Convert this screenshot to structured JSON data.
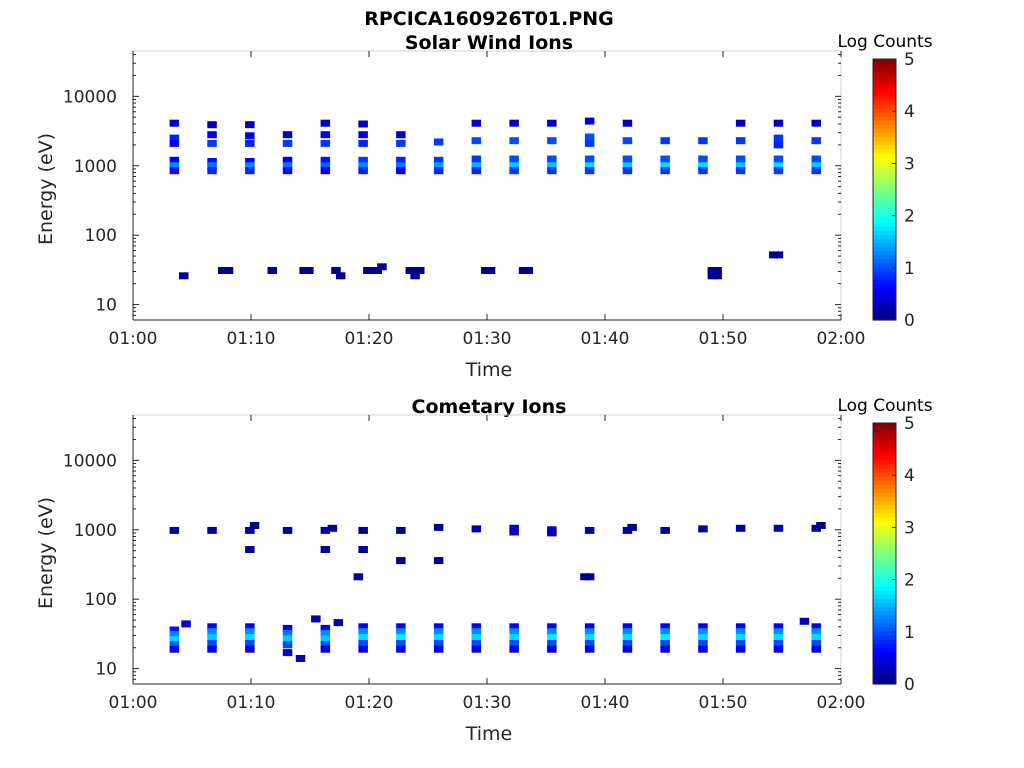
{
  "figure": {
    "title": "RPCICA160926T01.PNG"
  },
  "chart_data": [
    {
      "type": "heatmap",
      "title": "Solar Wind Ions",
      "xlabel": "Time",
      "ylabel": "Energy (eV)",
      "x_range_minutes": [
        0,
        60
      ],
      "y_scale": "log",
      "y_range": [
        6,
        45000
      ],
      "x_ticks": [
        {
          "v": 0,
          "label": "01:00"
        },
        {
          "v": 10,
          "label": "01:10"
        },
        {
          "v": 20,
          "label": "01:20"
        },
        {
          "v": 30,
          "label": "01:30"
        },
        {
          "v": 40,
          "label": "01:40"
        },
        {
          "v": 50,
          "label": "01:50"
        },
        {
          "v": 60,
          "label": "02:00"
        }
      ],
      "y_ticks": [
        {
          "v": 10,
          "label": "10"
        },
        {
          "v": 100,
          "label": "100"
        },
        {
          "v": 1000,
          "label": "1000"
        },
        {
          "v": 10000,
          "label": "10000"
        }
      ],
      "colorbar": {
        "label": "Log Counts",
        "min": 0,
        "max": 5,
        "ticks": [
          "0",
          "1",
          "2",
          "3",
          "4",
          "5"
        ]
      },
      "scan_times_minutes": [
        3.5,
        6.7,
        9.9,
        13.1,
        16.3,
        19.5,
        22.7,
        25.9,
        29.1,
        32.3,
        35.5,
        38.7,
        41.9,
        45.1,
        48.3,
        51.5,
        54.7,
        57.9
      ],
      "cells": [
        [
          3.5,
          4100,
          0.4
        ],
        [
          3.5,
          2500,
          0.8
        ],
        [
          3.5,
          2100,
          0.6
        ],
        [
          3.5,
          1200,
          0.6
        ],
        [
          3.5,
          1000,
          1.3
        ],
        [
          3.5,
          850,
          0.7
        ],
        [
          6.7,
          3900,
          0.3
        ],
        [
          6.7,
          2800,
          0.6
        ],
        [
          6.7,
          2100,
          0.9
        ],
        [
          6.7,
          1150,
          0.7
        ],
        [
          6.7,
          1000,
          1.2
        ],
        [
          6.7,
          850,
          0.8
        ],
        [
          9.9,
          3900,
          0.3
        ],
        [
          9.9,
          2700,
          0.5
        ],
        [
          9.9,
          2100,
          0.8
        ],
        [
          9.9,
          1150,
          0.6
        ],
        [
          9.9,
          1000,
          1.3
        ],
        [
          9.9,
          850,
          0.8
        ],
        [
          13.1,
          2800,
          0.4
        ],
        [
          13.1,
          2100,
          0.9
        ],
        [
          13.1,
          1200,
          0.6
        ],
        [
          13.1,
          1000,
          1.2
        ],
        [
          13.1,
          850,
          0.7
        ],
        [
          16.3,
          4100,
          0.3
        ],
        [
          16.3,
          2800,
          0.5
        ],
        [
          16.3,
          2100,
          0.9
        ],
        [
          16.3,
          1200,
          0.7
        ],
        [
          16.3,
          1000,
          1.1
        ],
        [
          16.3,
          850,
          0.6
        ],
        [
          19.5,
          4000,
          0.3
        ],
        [
          19.5,
          2800,
          0.5
        ],
        [
          19.5,
          2100,
          0.8
        ],
        [
          19.5,
          1200,
          0.9
        ],
        [
          19.5,
          1000,
          1.3
        ],
        [
          19.5,
          850,
          0.8
        ],
        [
          22.7,
          2800,
          0.5
        ],
        [
          22.7,
          2100,
          0.9
        ],
        [
          22.7,
          1200,
          0.8
        ],
        [
          22.7,
          1000,
          1.2
        ],
        [
          22.7,
          850,
          0.6
        ],
        [
          25.9,
          2200,
          0.9
        ],
        [
          25.9,
          1200,
          0.9
        ],
        [
          25.9,
          1000,
          1.4
        ],
        [
          25.9,
          850,
          0.8
        ],
        [
          29.1,
          4100,
          0.4
        ],
        [
          29.1,
          2300,
          1.0
        ],
        [
          29.1,
          1250,
          0.9
        ],
        [
          29.1,
          1000,
          1.5
        ],
        [
          29.1,
          850,
          0.8
        ],
        [
          32.3,
          4100,
          0.3
        ],
        [
          32.3,
          2300,
          1.0
        ],
        [
          32.3,
          1250,
          1.0
        ],
        [
          32.3,
          1000,
          1.6
        ],
        [
          32.3,
          850,
          0.9
        ],
        [
          35.5,
          4100,
          0.3
        ],
        [
          35.5,
          2300,
          1.0
        ],
        [
          35.5,
          1250,
          1.0
        ],
        [
          35.5,
          1000,
          1.6
        ],
        [
          35.5,
          850,
          0.9
        ],
        [
          38.7,
          4400,
          0.5
        ],
        [
          38.7,
          2600,
          1.0
        ],
        [
          38.7,
          2100,
          0.9
        ],
        [
          38.7,
          1250,
          1.0
        ],
        [
          38.7,
          1000,
          1.7
        ],
        [
          38.7,
          850,
          0.9
        ],
        [
          41.9,
          4100,
          0.3
        ],
        [
          41.9,
          2300,
          1.0
        ],
        [
          41.9,
          1250,
          1.0
        ],
        [
          41.9,
          1000,
          1.6
        ],
        [
          41.9,
          850,
          0.9
        ],
        [
          45.1,
          2300,
          0.9
        ],
        [
          45.1,
          1250,
          1.0
        ],
        [
          45.1,
          1000,
          1.7
        ],
        [
          45.1,
          850,
          0.9
        ],
        [
          48.3,
          2300,
          0.9
        ],
        [
          48.3,
          1250,
          1.0
        ],
        [
          48.3,
          1000,
          1.7
        ],
        [
          48.3,
          850,
          0.9
        ],
        [
          51.5,
          4100,
          0.3
        ],
        [
          51.5,
          2300,
          0.9
        ],
        [
          51.5,
          1250,
          1.0
        ],
        [
          51.5,
          1000,
          1.6
        ],
        [
          51.5,
          850,
          0.9
        ],
        [
          54.7,
          4100,
          0.3
        ],
        [
          54.7,
          2500,
          0.9
        ],
        [
          54.7,
          2000,
          0.8
        ],
        [
          54.7,
          1250,
          1.0
        ],
        [
          54.7,
          1000,
          1.7
        ],
        [
          54.7,
          850,
          0.9
        ],
        [
          57.9,
          4100,
          0.3
        ],
        [
          57.9,
          2300,
          0.9
        ],
        [
          57.9,
          1250,
          1.0
        ],
        [
          57.9,
          1000,
          1.6
        ],
        [
          57.9,
          850,
          0.9
        ],
        [
          4.3,
          26,
          0.1
        ],
        [
          7.6,
          31,
          0.1
        ],
        [
          8.1,
          31,
          0.1
        ],
        [
          11.8,
          31,
          0.1
        ],
        [
          14.5,
          31,
          0.1
        ],
        [
          14.9,
          31,
          0.1
        ],
        [
          17.2,
          31,
          0.1
        ],
        [
          17.6,
          26,
          0.1
        ],
        [
          19.9,
          31,
          0.1
        ],
        [
          20.7,
          31,
          0.1
        ],
        [
          21.1,
          35,
          0.1
        ],
        [
          23.5,
          31,
          0.1
        ],
        [
          23.9,
          26,
          0.1
        ],
        [
          24.3,
          31,
          0.1
        ],
        [
          29.9,
          31,
          0.1
        ],
        [
          30.3,
          31,
          0.1
        ],
        [
          33.1,
          31,
          0.1
        ],
        [
          33.5,
          31,
          0.1
        ],
        [
          49.1,
          31,
          0.1
        ],
        [
          49.5,
          31,
          0.1
        ],
        [
          49.1,
          26,
          0.1
        ],
        [
          49.5,
          26,
          0.1
        ],
        [
          54.3,
          52,
          0.1
        ],
        [
          54.7,
          52,
          0.1
        ]
      ]
    },
    {
      "type": "heatmap",
      "title": "Cometary Ions",
      "xlabel": "Time",
      "ylabel": "Energy (eV)",
      "x_range_minutes": [
        0,
        60
      ],
      "y_scale": "log",
      "y_range": [
        6,
        45000
      ],
      "x_ticks": [
        {
          "v": 0,
          "label": "01:00"
        },
        {
          "v": 10,
          "label": "01:10"
        },
        {
          "v": 20,
          "label": "01:20"
        },
        {
          "v": 30,
          "label": "01:30"
        },
        {
          "v": 40,
          "label": "01:40"
        },
        {
          "v": 50,
          "label": "01:50"
        },
        {
          "v": 60,
          "label": "02:00"
        }
      ],
      "y_ticks": [
        {
          "v": 10,
          "label": "10"
        },
        {
          "v": 100,
          "label": "100"
        },
        {
          "v": 1000,
          "label": "1000"
        },
        {
          "v": 10000,
          "label": "10000"
        }
      ],
      "colorbar": {
        "label": "Log Counts",
        "min": 0,
        "max": 5,
        "ticks": [
          "0",
          "1",
          "2",
          "3",
          "4",
          "5"
        ]
      },
      "scan_times_minutes": [
        3.5,
        6.7,
        9.9,
        13.1,
        16.3,
        19.5,
        22.7,
        25.9,
        29.1,
        32.3,
        35.5,
        38.7,
        41.9,
        45.1,
        48.3,
        51.5,
        54.7,
        57.9
      ],
      "cells": [
        [
          3.5,
          980,
          0.2
        ],
        [
          6.7,
          980,
          0.2
        ],
        [
          9.9,
          980,
          0.2
        ],
        [
          10.3,
          1150,
          0.1
        ],
        [
          13.1,
          980,
          0.2
        ],
        [
          16.3,
          980,
          0.2
        ],
        [
          16.9,
          1050,
          0.1
        ],
        [
          19.5,
          980,
          0.1
        ],
        [
          22.7,
          980,
          0.1
        ],
        [
          25.9,
          1080,
          0.1
        ],
        [
          29.1,
          1030,
          0.2
        ],
        [
          32.3,
          1050,
          0.4
        ],
        [
          32.3,
          930,
          0.3
        ],
        [
          35.5,
          1000,
          0.4
        ],
        [
          35.5,
          900,
          0.3
        ],
        [
          38.7,
          980,
          0.2
        ],
        [
          41.9,
          980,
          0.2
        ],
        [
          42.3,
          1080,
          0.1
        ],
        [
          45.1,
          980,
          0.2
        ],
        [
          48.3,
          1030,
          0.2
        ],
        [
          51.5,
          1050,
          0.2
        ],
        [
          54.7,
          1050,
          0.2
        ],
        [
          57.9,
          1050,
          0.2
        ],
        [
          58.3,
          1150,
          0.1
        ],
        [
          9.9,
          520,
          0.1
        ],
        [
          16.3,
          520,
          0.1
        ],
        [
          19.5,
          520,
          0.1
        ],
        [
          22.7,
          360,
          0.1
        ],
        [
          25.9,
          360,
          0.1
        ],
        [
          19.1,
          210,
          0.1
        ],
        [
          38.3,
          210,
          0.1
        ],
        [
          38.7,
          210,
          0.1
        ],
        [
          3.5,
          36,
          0.7
        ],
        [
          3.5,
          31,
          1.3
        ],
        [
          3.5,
          26,
          1.7
        ],
        [
          3.5,
          22,
          1.1
        ],
        [
          3.5,
          19,
          0.6
        ],
        [
          4.5,
          44,
          0.4
        ],
        [
          6.7,
          40,
          0.6
        ],
        [
          6.7,
          34,
          1.3
        ],
        [
          6.7,
          28,
          1.6
        ],
        [
          6.7,
          23,
          1.0
        ],
        [
          6.7,
          19,
          0.5
        ],
        [
          9.9,
          40,
          0.6
        ],
        [
          9.9,
          34,
          1.3
        ],
        [
          9.9,
          28,
          1.7
        ],
        [
          9.9,
          23,
          1.0
        ],
        [
          9.9,
          19,
          0.5
        ],
        [
          13.1,
          38,
          0.6
        ],
        [
          13.1,
          32,
          1.2
        ],
        [
          13.1,
          27,
          1.6
        ],
        [
          13.1,
          22,
          1.0
        ],
        [
          13.1,
          17,
          0.5
        ],
        [
          14.2,
          14,
          0.3
        ],
        [
          15.5,
          52,
          0.2
        ],
        [
          16.3,
          38,
          0.6
        ],
        [
          16.3,
          32,
          1.3
        ],
        [
          16.3,
          27,
          1.6
        ],
        [
          16.3,
          22,
          1.0
        ],
        [
          16.3,
          19,
          0.5
        ],
        [
          17.4,
          46,
          0.3
        ],
        [
          19.5,
          40,
          0.6
        ],
        [
          19.5,
          34,
          1.3
        ],
        [
          19.5,
          28,
          1.7
        ],
        [
          19.5,
          23,
          1.0
        ],
        [
          19.5,
          19,
          0.5
        ],
        [
          22.7,
          40,
          0.6
        ],
        [
          22.7,
          34,
          1.3
        ],
        [
          22.7,
          28,
          1.8
        ],
        [
          22.7,
          23,
          1.0
        ],
        [
          22.7,
          19,
          0.5
        ],
        [
          25.9,
          40,
          0.6
        ],
        [
          25.9,
          34,
          1.3
        ],
        [
          25.9,
          28,
          1.7
        ],
        [
          25.9,
          23,
          1.0
        ],
        [
          25.9,
          19,
          0.5
        ],
        [
          29.1,
          40,
          0.6
        ],
        [
          29.1,
          34,
          1.3
        ],
        [
          29.1,
          28,
          1.7
        ],
        [
          29.1,
          23,
          1.0
        ],
        [
          29.1,
          19,
          0.5
        ],
        [
          32.3,
          40,
          0.6
        ],
        [
          32.3,
          34,
          1.3
        ],
        [
          32.3,
          28,
          1.7
        ],
        [
          32.3,
          23,
          1.0
        ],
        [
          32.3,
          19,
          0.5
        ],
        [
          35.5,
          40,
          0.6
        ],
        [
          35.5,
          34,
          1.3
        ],
        [
          35.5,
          28,
          1.8
        ],
        [
          35.5,
          23,
          1.0
        ],
        [
          35.5,
          19,
          0.5
        ],
        [
          38.7,
          40,
          0.6
        ],
        [
          38.7,
          34,
          1.3
        ],
        [
          38.7,
          28,
          1.7
        ],
        [
          38.7,
          23,
          1.0
        ],
        [
          38.7,
          19,
          0.5
        ],
        [
          41.9,
          40,
          0.6
        ],
        [
          41.9,
          34,
          1.3
        ],
        [
          41.9,
          28,
          1.7
        ],
        [
          41.9,
          23,
          1.0
        ],
        [
          41.9,
          19,
          0.5
        ],
        [
          45.1,
          40,
          0.6
        ],
        [
          45.1,
          34,
          1.3
        ],
        [
          45.1,
          28,
          1.8
        ],
        [
          45.1,
          23,
          1.0
        ],
        [
          45.1,
          19,
          0.5
        ],
        [
          48.3,
          40,
          0.6
        ],
        [
          48.3,
          34,
          1.3
        ],
        [
          48.3,
          28,
          1.7
        ],
        [
          48.3,
          23,
          1.0
        ],
        [
          48.3,
          19,
          0.5
        ],
        [
          51.5,
          40,
          0.6
        ],
        [
          51.5,
          34,
          1.3
        ],
        [
          51.5,
          28,
          1.7
        ],
        [
          51.5,
          23,
          1.0
        ],
        [
          51.5,
          19,
          0.5
        ],
        [
          54.7,
          40,
          0.6
        ],
        [
          54.7,
          34,
          1.3
        ],
        [
          54.7,
          28,
          1.7
        ],
        [
          54.7,
          23,
          1.0
        ],
        [
          54.7,
          19,
          0.5
        ],
        [
          56.9,
          48,
          0.3
        ],
        [
          57.9,
          40,
          0.6
        ],
        [
          57.9,
          34,
          1.3
        ],
        [
          57.9,
          28,
          1.7
        ],
        [
          57.9,
          23,
          1.0
        ],
        [
          57.9,
          19,
          0.5
        ]
      ]
    }
  ]
}
